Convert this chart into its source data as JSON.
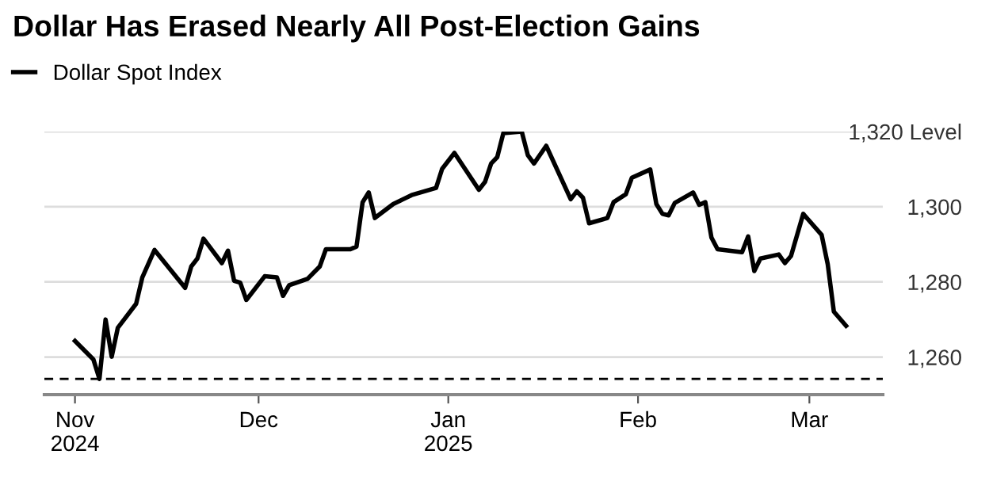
{
  "chart_data": {
    "type": "line",
    "title": "Dollar Has Erased Nearly All Post-Election Gains",
    "x": [
      "2024-11-01",
      "2024-11-04",
      "2024-11-05",
      "2024-11-06",
      "2024-11-07",
      "2024-11-08",
      "2024-11-11",
      "2024-11-12",
      "2024-11-14",
      "2024-11-19",
      "2024-11-20",
      "2024-11-21",
      "2024-11-22",
      "2024-11-25",
      "2024-11-26",
      "2024-11-27",
      "2024-11-28",
      "2024-11-29",
      "2024-12-02",
      "2024-12-04",
      "2024-12-05",
      "2024-12-06",
      "2024-12-09",
      "2024-12-11",
      "2024-12-12",
      "2024-12-16",
      "2024-12-17",
      "2024-12-18",
      "2024-12-19",
      "2024-12-20",
      "2024-12-23",
      "2024-12-26",
      "2024-12-30",
      "2024-12-31",
      "2025-01-02",
      "2025-01-06",
      "2025-01-07",
      "2025-01-08",
      "2025-01-09",
      "2025-01-10",
      "2025-01-13",
      "2025-01-14",
      "2025-01-15",
      "2025-01-17",
      "2025-01-21",
      "2025-01-22",
      "2025-01-23",
      "2025-01-24",
      "2025-01-27",
      "2025-01-28",
      "2025-01-30",
      "2025-01-31",
      "2025-02-03",
      "2025-02-04",
      "2025-02-05",
      "2025-02-06",
      "2025-02-07",
      "2025-02-10",
      "2025-02-11",
      "2025-02-12",
      "2025-02-13",
      "2025-02-14",
      "2025-02-18",
      "2025-02-19",
      "2025-02-20",
      "2025-02-21",
      "2025-02-24",
      "2025-02-25",
      "2025-02-26",
      "2025-02-28",
      "2025-03-03",
      "2025-03-04",
      "2025-03-05",
      "2025-03-07"
    ],
    "series": [
      {
        "name": "Dollar Spot Index",
        "color": "#000000",
        "values": [
          1264.3,
          1259.4,
          1254.2,
          1270.0,
          1260.1,
          1267.8,
          1274.2,
          1281.2,
          1288.5,
          1278.4,
          1284.1,
          1286.2,
          1291.5,
          1285.0,
          1288.3,
          1280.3,
          1279.8,
          1275.2,
          1281.5,
          1281.2,
          1276.3,
          1279.1,
          1280.8,
          1284.1,
          1288.7,
          1288.7,
          1289.4,
          1301.2,
          1303.8,
          1297.0,
          1300.7,
          1303.1,
          1305.0,
          1310.1,
          1314.3,
          1304.5,
          1306.6,
          1311.5,
          1313.2,
          1319.6,
          1320.0,
          1313.7,
          1311.5,
          1316.2,
          1302.0,
          1304.1,
          1302.4,
          1295.6,
          1297.0,
          1301.2,
          1303.3,
          1307.7,
          1309.9,
          1300.7,
          1298.1,
          1297.7,
          1301.0,
          1303.8,
          1300.5,
          1301.2,
          1291.8,
          1288.7,
          1287.9,
          1292.1,
          1282.9,
          1286.2,
          1287.3,
          1285.0,
          1286.9,
          1298.1,
          1292.5,
          1284.7,
          1272.1,
          1268.3
        ]
      }
    ],
    "xlim": [
      "2024-10-27",
      "2025-03-13"
    ],
    "xticks": [
      {
        "value": "2024-11-01",
        "label": "Nov\n2024"
      },
      {
        "value": "2024-12-01",
        "label": "Dec"
      },
      {
        "value": "2025-01-01",
        "label": "Jan\n2025"
      },
      {
        "value": "2025-02-01",
        "label": "Feb"
      },
      {
        "value": "2025-03-01",
        "label": "Mar"
      }
    ],
    "ylim": [
      1250,
      1320
    ],
    "yticks": [
      {
        "value": 1260,
        "label": "1,260"
      },
      {
        "value": 1280,
        "label": "1,280"
      },
      {
        "value": 1300,
        "label": "1,300"
      },
      {
        "value": 1320,
        "label": "1,320 Level"
      }
    ],
    "ref_lines": [
      {
        "axis": "y",
        "value": 1254.2,
        "color": "#000000",
        "line_style": "dashed"
      }
    ],
    "grid": "y",
    "legend": "top left"
  }
}
